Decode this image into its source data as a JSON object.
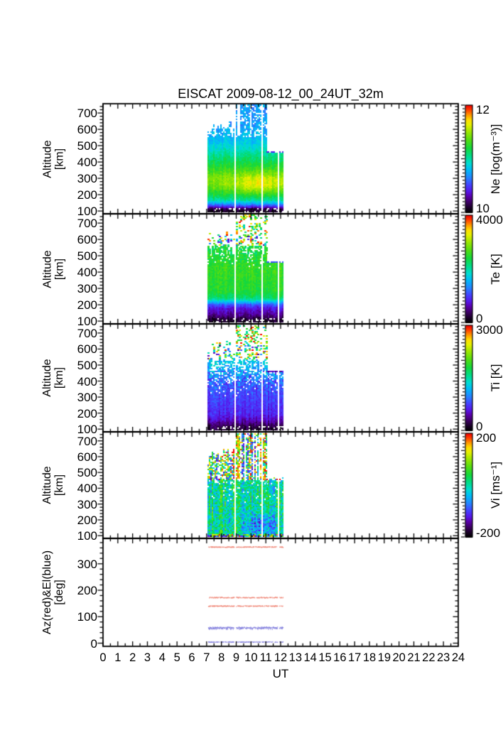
{
  "chart_data": {
    "type": "heatmap",
    "title": "EISCAT 2009-08-12_00_24UT_32m",
    "x_axis": {
      "label": "UT",
      "range": [
        0,
        24
      ],
      "major_tick": 1,
      "minor_tick": 0.5,
      "tick_labels": [
        "0",
        "1",
        "2",
        "3",
        "4",
        "5",
        "6",
        "7",
        "8",
        "9",
        "10",
        "11",
        "12",
        "13",
        "14",
        "15",
        "16",
        "17",
        "18",
        "19",
        "20",
        "21",
        "22",
        "23",
        "24"
      ]
    },
    "coverage": {
      "blocks": [
        {
          "ut": [
            7.04,
            7.14
          ],
          "top_alt": 600
        },
        {
          "ut": [
            7.14,
            8.86
          ],
          "top_alt": 648
        },
        {
          "ut": [
            8.98,
            11.02
          ],
          "top_alt": 757
        },
        {
          "ut": [
            11.02,
            11.78
          ],
          "top_alt": 462
        },
        {
          "ut": [
            11.88,
            12.16
          ],
          "top_alt": 462
        }
      ],
      "gaps_ut": [
        [
          8.86,
          8.98
        ],
        [
          11.78,
          11.88
        ]
      ]
    },
    "colormap": [
      {
        "p": 0.0,
        "c": "#000000"
      },
      {
        "p": 0.04,
        "c": "#150020"
      },
      {
        "p": 0.09,
        "c": "#38005a"
      },
      {
        "p": 0.15,
        "c": "#5a00aa"
      },
      {
        "p": 0.2,
        "c": "#5618ea"
      },
      {
        "p": 0.26,
        "c": "#4444ff"
      },
      {
        "p": 0.33,
        "c": "#2288ff"
      },
      {
        "p": 0.4,
        "c": "#00bbf8"
      },
      {
        "p": 0.46,
        "c": "#00dcd0"
      },
      {
        "p": 0.52,
        "c": "#00dc90"
      },
      {
        "p": 0.6,
        "c": "#14d83c"
      },
      {
        "p": 0.68,
        "c": "#55dd11"
      },
      {
        "p": 0.76,
        "c": "#a2e800"
      },
      {
        "p": 0.82,
        "c": "#e6f000"
      },
      {
        "p": 0.865,
        "c": "#ffdd00"
      },
      {
        "p": 0.91,
        "c": "#ff9900"
      },
      {
        "p": 0.955,
        "c": "#ff4400"
      },
      {
        "p": 1.0,
        "c": "#f50000"
      }
    ],
    "panels": [
      {
        "id": "ne",
        "kind": "spectrogram",
        "ylabel_lines": [
          "Altitude",
          "[km]"
        ],
        "y_range": [
          83,
          757
        ],
        "y_ticks": [
          100,
          200,
          300,
          400,
          500,
          600,
          700
        ],
        "y_minor_step": 20,
        "colorbar": {
          "title": "Ne [log(m⁻³)]",
          "top": "12",
          "bottom": "10"
        },
        "value_range": [
          10,
          12
        ],
        "profile": [
          [
            85,
            10.04
          ],
          [
            108,
            10.16
          ],
          [
            132,
            10.62
          ],
          [
            160,
            11.0
          ],
          [
            190,
            11.18
          ],
          [
            220,
            11.32
          ],
          [
            255,
            11.45
          ],
          [
            300,
            11.45
          ],
          [
            350,
            11.3
          ],
          [
            420,
            11.1
          ],
          [
            480,
            10.93
          ],
          [
            545,
            10.8
          ],
          [
            620,
            10.73
          ],
          [
            757,
            10.7
          ]
        ],
        "noise": 0.07,
        "col_jitter": 0.03,
        "solid_top_alt": 552,
        "sparse_density": 0.68,
        "sparse_density_tall": 0.8,
        "sparse_mode": "profile",
        "sparse_spread_t": 0.06,
        "sparse_col_gate": 0.88,
        "bottom_speckle_alt": 112,
        "bottom_density": 0.8,
        "cap_dark": true,
        "enhancement": {
          "ut_center": 10.5,
          "ut_sigma": 1.5,
          "alt_center": 260,
          "alt_sigma": 65,
          "delta": 0.22
        }
      },
      {
        "id": "te",
        "kind": "spectrogram",
        "ylabel_lines": [
          "Altitude",
          "[km]"
        ],
        "y_range": [
          83,
          757
        ],
        "y_ticks": [
          100,
          200,
          300,
          400,
          500,
          600,
          700
        ],
        "y_minor_step": 20,
        "colorbar": {
          "title": "Te [K]",
          "top": "4000",
          "bottom": "0"
        },
        "value_range": [
          0,
          4000
        ],
        "profile": [
          [
            85,
            150
          ],
          [
            110,
            280
          ],
          [
            135,
            550
          ],
          [
            175,
            800
          ],
          [
            195,
            1100
          ],
          [
            215,
            1700
          ],
          [
            235,
            2200
          ],
          [
            270,
            2450
          ],
          [
            350,
            2550
          ],
          [
            430,
            2560
          ],
          [
            500,
            2450
          ],
          [
            560,
            2350
          ]
        ],
        "noise": 130,
        "noise_hi": {
          "from_alt": 380,
          "amp": 280
        },
        "col_jitter": 0.028,
        "solid_top_alt": 505,
        "mid_sparse": {
          "to_alt": 560,
          "density": 0.72
        },
        "sparse_density": 0.28,
        "sparse_density_tall": 0.32,
        "sparse_mode": "random",
        "sparse_col_gate": 0.9,
        "sparse_spread_t": 0.07,
        "holes": {
          "from_alt": 400,
          "max_skip": 0.12
        },
        "bottom_speckle_alt": 112,
        "bottom_density": 0.78,
        "cap_dark": true
      },
      {
        "id": "ti",
        "kind": "spectrogram",
        "ylabel_lines": [
          "Altitude",
          "[km]"
        ],
        "y_range": [
          83,
          757
        ],
        "y_ticks": [
          100,
          200,
          300,
          400,
          500,
          600,
          700
        ],
        "y_minor_step": 20,
        "colorbar": {
          "title": "Ti [K]",
          "top": "3000",
          "bottom": "0"
        },
        "value_range": [
          0,
          3000
        ],
        "profile": [
          [
            85,
            130
          ],
          [
            115,
            250
          ],
          [
            150,
            480
          ],
          [
            190,
            650
          ],
          [
            280,
            750
          ],
          [
            380,
            850
          ],
          [
            460,
            1100
          ],
          [
            560,
            1350
          ]
        ],
        "noise": 100,
        "noise_hi": {
          "from_alt": 300,
          "amp": 360
        },
        "col_jitter": 0.028,
        "solid_top_alt": 460,
        "mid_sparse": {
          "to_alt": 530,
          "density": 0.5
        },
        "sparse_density": 0.3,
        "sparse_density_tall": 0.32,
        "sparse_mode": "random",
        "sparse_col_gate": 0.9,
        "sparse_spread_t": 0.07,
        "holes": {
          "from_alt": 280,
          "max_skip": 0.25
        },
        "bottom_speckle_alt": 115,
        "bottom_density": 0.78,
        "cap_dark": true
      },
      {
        "id": "vi",
        "kind": "spectrogram",
        "ylabel_lines": [
          "Altitude",
          "[km]"
        ],
        "y_range": [
          83,
          757
        ],
        "y_ticks": [
          100,
          200,
          300,
          400,
          500,
          600,
          700
        ],
        "y_minor_step": 20,
        "colorbar": {
          "title": "Vi [ms⁻¹]",
          "top": "200",
          "bottom": "-200"
        },
        "value_range": [
          -200,
          200
        ],
        "profile": [
          [
            85,
            5
          ],
          [
            757,
            5
          ]
        ],
        "noise": 55,
        "col_jitter": 0.09,
        "solid_top_alt": 448,
        "sparse_density": 0.72,
        "sparse_density_tall": 0.78,
        "sparse_mode": "random_column",
        "sparse_col_gate": 0.92,
        "holes": {
          "from_alt": 280,
          "max_skip": 0.12
        },
        "bottom_random_alt": 107,
        "blue_patch": {
          "ut_center": 10.7,
          "ut_sigma": 1.0,
          "alt_center": 160,
          "alt_sigma": 70,
          "delta": -85
        }
      },
      {
        "id": "azel",
        "kind": "lines",
        "ylabel_lines": [
          "Az(red)&El(blue)",
          "[deg]"
        ],
        "y_range": [
          -12,
          396
        ],
        "y_ticks": [
          0,
          100,
          200,
          300
        ],
        "y_minor_step": 20,
        "ut_extent": [
          7.1,
          12.15
        ],
        "series": [
          {
            "name": "Az",
            "color_name": "red",
            "color": "#ee8070",
            "values_deg": [
              363,
              172,
              140
            ],
            "dense": false
          },
          {
            "name": "El",
            "color_name": "blue",
            "color": "#8480dd",
            "values_deg": [
              58
            ],
            "dense": true
          },
          {
            "name": "El2",
            "color_name": "blue",
            "color": "#8480dd",
            "values_deg": [
              4
            ],
            "dense": false
          }
        ]
      }
    ]
  }
}
